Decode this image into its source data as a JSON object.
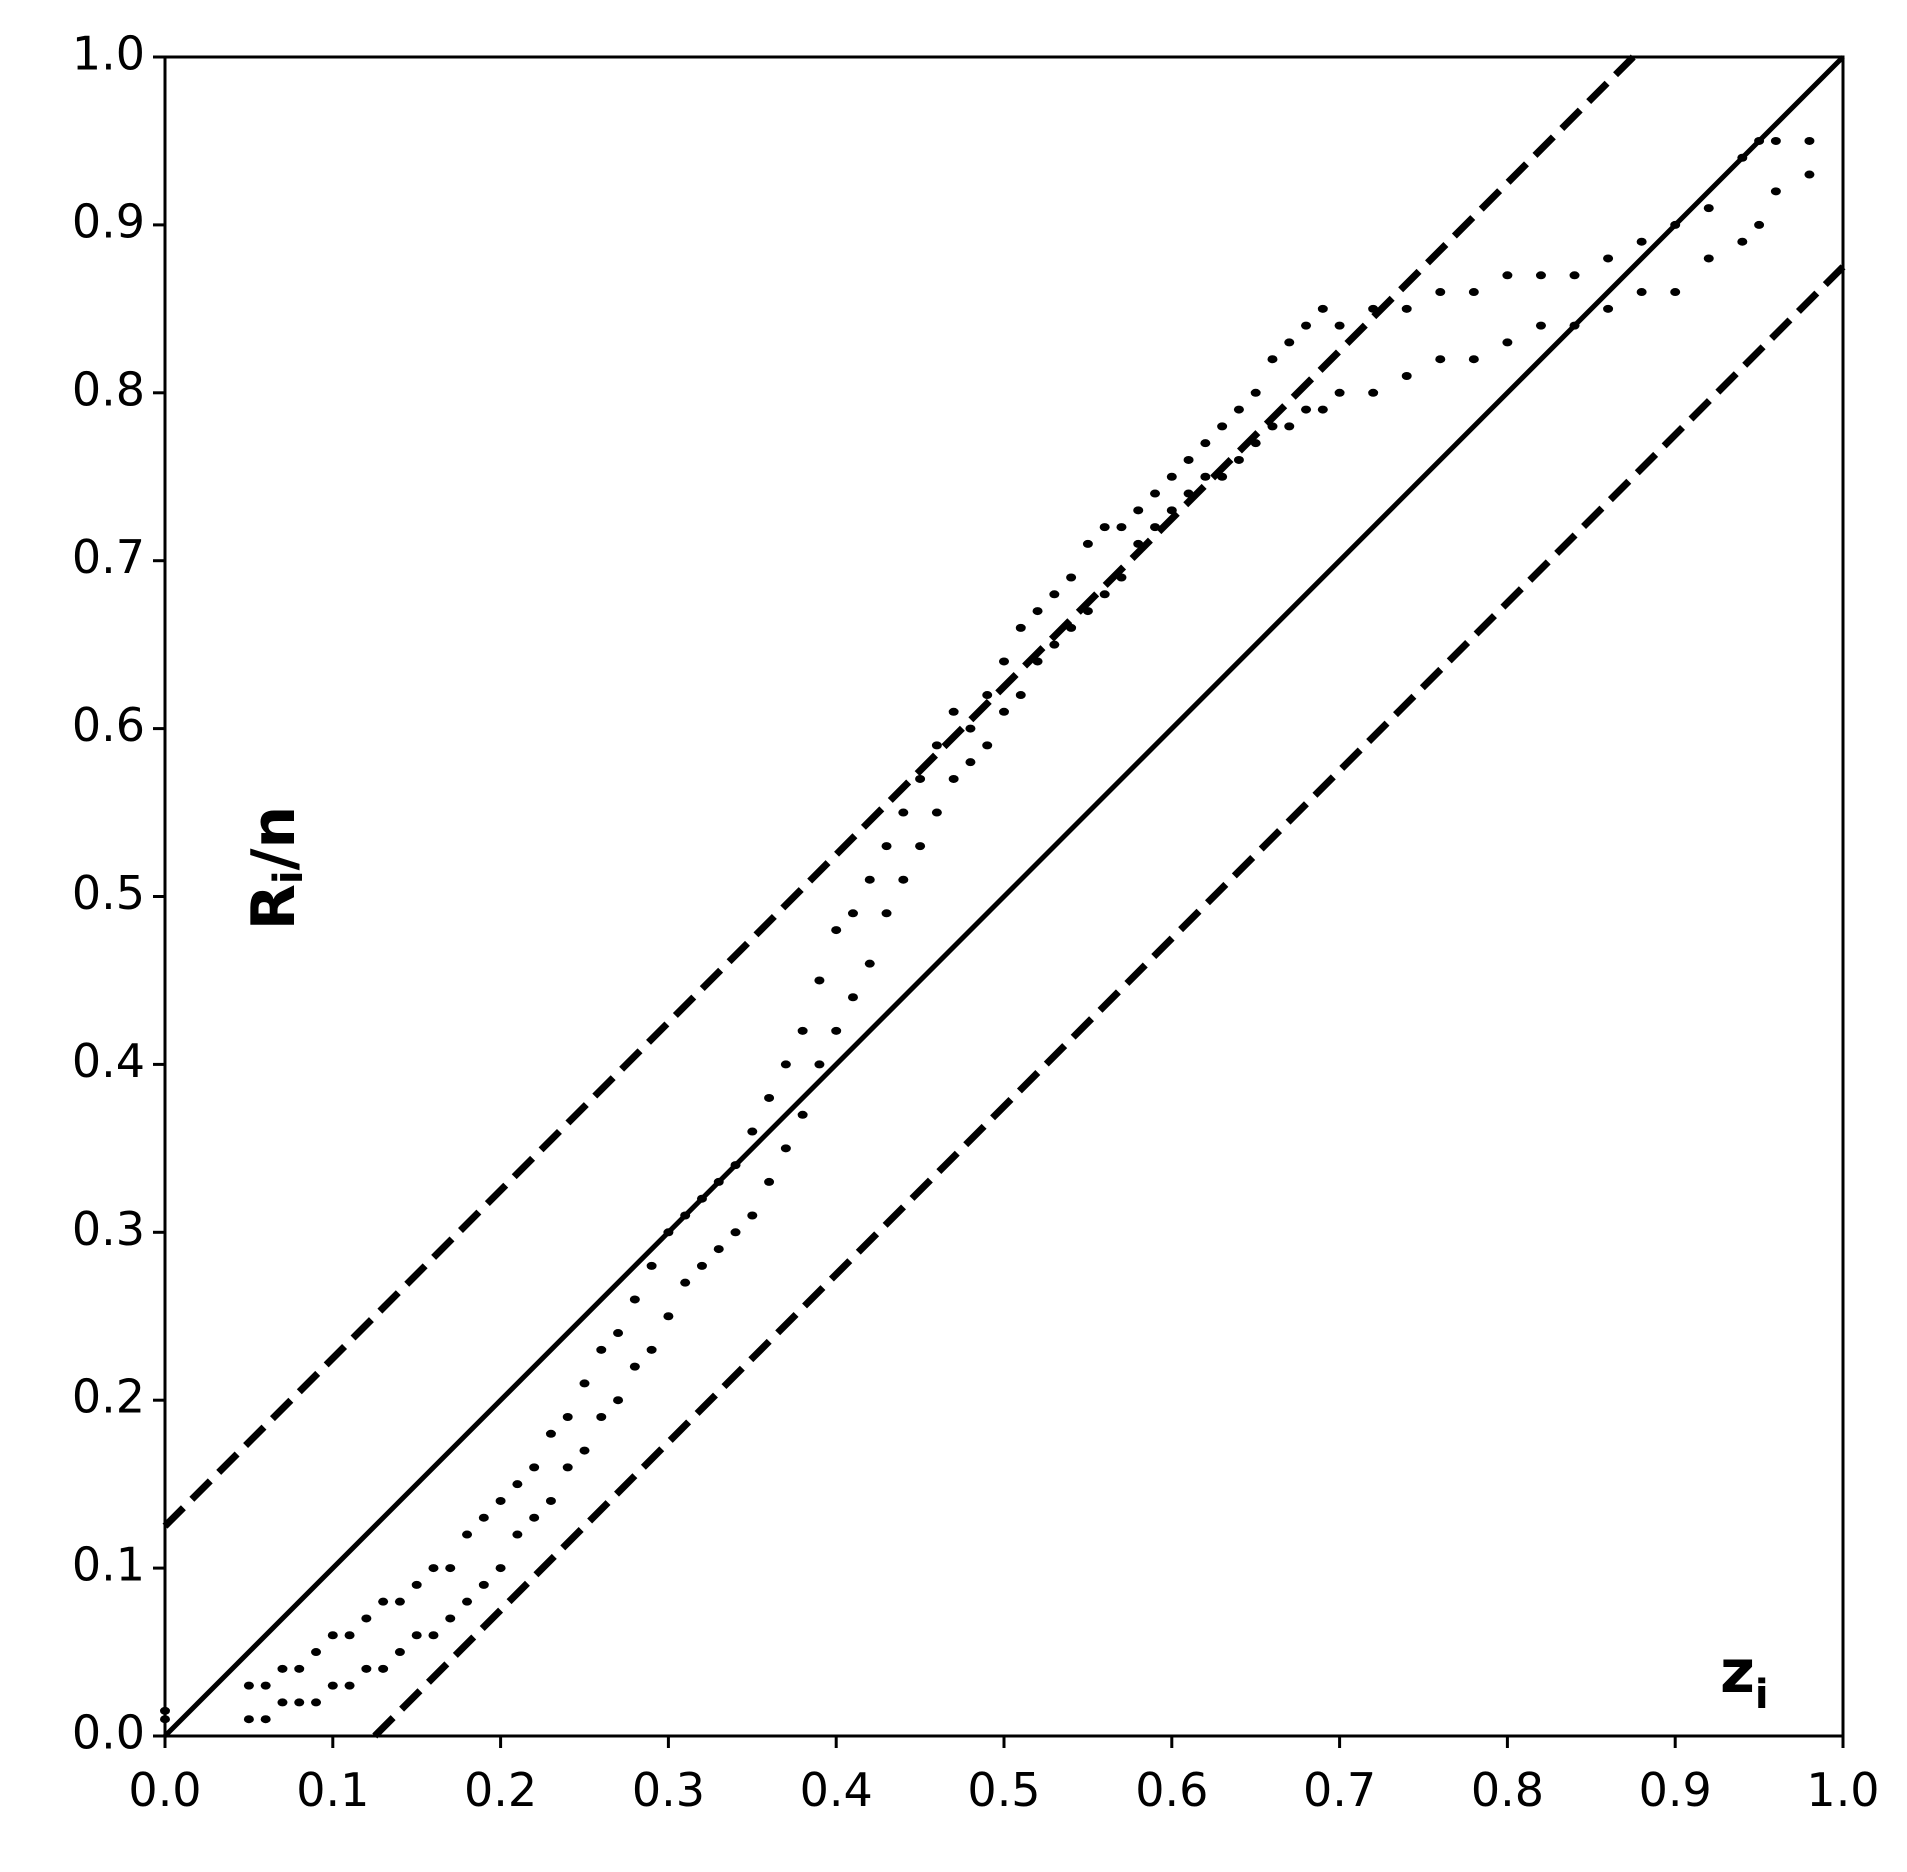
{
  "chart_data": {
    "type": "scatter",
    "ylabel": [
      "R",
      "i",
      "/n"
    ],
    "xlabel": [
      "z",
      "i"
    ],
    "color": "#000000",
    "x": [
      0,
      0,
      0.05,
      0.05,
      0.06,
      0.06,
      0.07,
      0.07,
      0.08,
      0.08,
      0.09,
      0.09,
      0.1,
      0.1,
      0.11,
      0.11,
      0.12,
      0.12,
      0.13,
      0.13,
      0.14,
      0.14,
      0.15,
      0.15,
      0.16,
      0.16,
      0.17,
      0.17,
      0.18,
      0.18,
      0.19,
      0.19,
      0.2,
      0.2,
      0.21,
      0.21,
      0.22,
      0.22,
      0.23,
      0.23,
      0.24,
      0.24,
      0.25,
      0.25,
      0.26,
      0.26,
      0.27,
      0.27,
      0.28,
      0.28,
      0.29,
      0.29,
      0.3,
      0.3,
      0.31,
      0.31,
      0.32,
      0.32,
      0.33,
      0.33,
      0.34,
      0.34,
      0.35,
      0.35,
      0.36,
      0.36,
      0.37,
      0.37,
      0.38,
      0.38,
      0.39,
      0.39,
      0.4,
      0.4,
      0.41,
      0.41,
      0.42,
      0.42,
      0.43,
      0.43,
      0.44,
      0.44,
      0.45,
      0.45,
      0.46,
      0.46,
      0.47,
      0.47,
      0.48,
      0.48,
      0.49,
      0.49,
      0.5,
      0.5,
      0.51,
      0.51,
      0.52,
      0.52,
      0.53,
      0.53,
      0.54,
      0.54,
      0.55,
      0.55,
      0.56,
      0.56,
      0.57,
      0.57,
      0.58,
      0.58,
      0.59,
      0.59,
      0.6,
      0.6,
      0.61,
      0.61,
      0.62,
      0.62,
      0.63,
      0.63,
      0.64,
      0.64,
      0.65,
      0.65,
      0.66,
      0.66,
      0.67,
      0.67,
      0.68,
      0.68,
      0.69,
      0.69,
      0.7,
      0.7,
      0.72,
      0.72,
      0.74,
      0.74,
      0.76,
      0.76,
      0.78,
      0.78,
      0.8,
      0.8,
      0.82,
      0.82,
      0.84,
      0.84,
      0.86,
      0.86,
      0.88,
      0.88,
      0.9,
      0.9,
      0.92,
      0.92,
      0.94,
      0.94,
      0.95,
      0.95,
      0.96,
      0.96,
      0.98,
      0.98
    ],
    "values": [
      0.01,
      0.015,
      0.01,
      0.03,
      0.01,
      0.03,
      0.02,
      0.04,
      0.02,
      0.04,
      0.02,
      0.05,
      0.03,
      0.06,
      0.03,
      0.06,
      0.04,
      0.07,
      0.04,
      0.08,
      0.05,
      0.08,
      0.06,
      0.09,
      0.06,
      0.1,
      0.07,
      0.1,
      0.08,
      0.12,
      0.09,
      0.13,
      0.1,
      0.14,
      0.12,
      0.15,
      0.13,
      0.16,
      0.14,
      0.18,
      0.16,
      0.19,
      0.17,
      0.21,
      0.19,
      0.23,
      0.2,
      0.24,
      0.22,
      0.26,
      0.23,
      0.28,
      0.25,
      0.3,
      0.27,
      0.31,
      0.28,
      0.32,
      0.29,
      0.33,
      0.3,
      0.34,
      0.31,
      0.36,
      0.33,
      0.38,
      0.35,
      0.4,
      0.37,
      0.42,
      0.4,
      0.45,
      0.42,
      0.48,
      0.44,
      0.49,
      0.46,
      0.51,
      0.49,
      0.53,
      0.51,
      0.55,
      0.53,
      0.57,
      0.55,
      0.59,
      0.57,
      0.61,
      0.58,
      0.6,
      0.59,
      0.62,
      0.61,
      0.64,
      0.62,
      0.66,
      0.64,
      0.67,
      0.65,
      0.68,
      0.66,
      0.69,
      0.67,
      0.71,
      0.68,
      0.72,
      0.69,
      0.72,
      0.71,
      0.73,
      0.72,
      0.74,
      0.73,
      0.75,
      0.74,
      0.76,
      0.75,
      0.77,
      0.75,
      0.78,
      0.76,
      0.79,
      0.77,
      0.8,
      0.78,
      0.82,
      0.78,
      0.83,
      0.79,
      0.84,
      0.79,
      0.85,
      0.8,
      0.84,
      0.8,
      0.85,
      0.81,
      0.85,
      0.82,
      0.86,
      0.82,
      0.86,
      0.83,
      0.87,
      0.84,
      0.87,
      0.84,
      0.87,
      0.85,
      0.88,
      0.86,
      0.89,
      0.86,
      0.9,
      0.88,
      0.91,
      0.89,
      0.94,
      0.9,
      0.95,
      0.92,
      0.95,
      0.93,
      0.95
    ],
    "lines": [
      {
        "x": [
          0,
          1
        ],
        "values": [
          0,
          1
        ],
        "dashed": false
      },
      {
        "x": [
          0,
          0.875
        ],
        "values": [
          0.125,
          1
        ],
        "dashed": true
      },
      {
        "x": [
          0.125,
          1
        ],
        "values": [
          0,
          0.875
        ],
        "dashed": true
      }
    ],
    "xlim": [
      0,
      1
    ],
    "ylim": [
      0,
      1
    ],
    "xticks": [
      {
        "value": 0,
        "label": "0.0"
      },
      {
        "value": 0.1,
        "label": "0.1"
      },
      {
        "value": 0.2,
        "label": "0.2"
      },
      {
        "value": 0.3,
        "label": "0.3"
      },
      {
        "value": 0.4,
        "label": "0.4"
      },
      {
        "value": 0.5,
        "label": "0.5"
      },
      {
        "value": 0.6,
        "label": "0.6"
      },
      {
        "value": 0.7,
        "label": "0.7"
      },
      {
        "value": 0.8,
        "label": "0.8"
      },
      {
        "value": 0.9,
        "label": "0.9"
      },
      {
        "value": 1,
        "label": "1.0"
      }
    ],
    "yticks": [
      {
        "value": 0,
        "label": "0.0"
      },
      {
        "value": 0.1,
        "label": "0.1"
      },
      {
        "value": 0.2,
        "label": "0.2"
      },
      {
        "value": 0.3,
        "label": "0.3"
      },
      {
        "value": 0.4,
        "label": "0.4"
      },
      {
        "value": 0.5,
        "label": "0.5"
      },
      {
        "value": 0.6,
        "label": "0.6"
      },
      {
        "value": 0.7,
        "label": "0.7"
      },
      {
        "value": 0.8,
        "label": "0.8"
      },
      {
        "value": 0.9,
        "label": "0.9"
      },
      {
        "value": 1,
        "label": "1.0"
      }
    ],
    "grid": false
  }
}
